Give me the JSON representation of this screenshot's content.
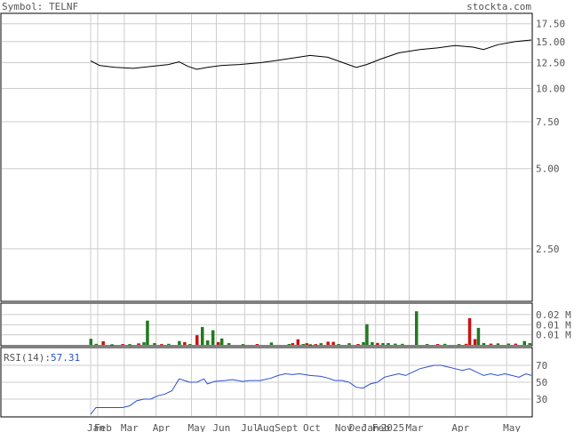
{
  "header": {
    "symbol_label": "Symbol: TELNF",
    "site": "stockta.com"
  },
  "colors": {
    "text": "#555555",
    "grid": "#cccccc",
    "frame": "#000000",
    "price": "#000000",
    "rsi": "#2a4fcf",
    "rsi_value": "#2a4fcf",
    "vol_up": "#1f7a1f",
    "vol_down": "#cc1111"
  },
  "chart_data": [
    {
      "type": "line",
      "panel": "price",
      "scale": "log",
      "ylim": [
        1.6,
        19
      ],
      "y_ticks": [
        {
          "label": "17.50",
          "v": 17.5
        },
        {
          "label": "15.00",
          "v": 15.0
        },
        {
          "label": "12.50",
          "v": 12.5
        },
        {
          "label": "10.00",
          "v": 10.0
        },
        {
          "label": "7.50",
          "v": 7.5
        },
        {
          "label": "5.00",
          "v": 5.0
        },
        {
          "label": "2.50",
          "v": 2.5
        }
      ],
      "x_months": [
        {
          "label": "Jan",
          "x": 0
        },
        {
          "label": "Feb",
          "x": 4
        },
        {
          "label": "Mar",
          "x": 19
        },
        {
          "label": "Apr",
          "x": 37
        },
        {
          "label": "May",
          "x": 57
        },
        {
          "label": "Jun",
          "x": 71
        },
        {
          "label": "Jul",
          "x": 87
        },
        {
          "label": "Aug",
          "x": 96
        },
        {
          "label": "Sept",
          "x": 106
        },
        {
          "label": "Oct",
          "x": 122
        },
        {
          "label": "Nov",
          "x": 140
        },
        {
          "label": "Dec",
          "x": 148
        },
        {
          "label": "Jan",
          "x": 155
        },
        {
          "label": "Feb",
          "x": 161
        },
        {
          "label": "2025",
          "x": 166
        },
        {
          "label": "Mar",
          "x": 180
        },
        {
          "label": "Apr",
          "x": 206
        },
        {
          "label": "May",
          "x": 235
        }
      ],
      "x_range": [
        0,
        249
      ],
      "series": [
        {
          "values": [
            [
              0,
              12.7
            ],
            [
              5,
              12.2
            ],
            [
              14,
              12.0
            ],
            [
              24,
              11.9
            ],
            [
              34,
              12.1
            ],
            [
              44,
              12.3
            ],
            [
              50,
              12.6
            ],
            [
              55,
              12.1
            ],
            [
              60,
              11.8
            ],
            [
              66,
              12.0
            ],
            [
              74,
              12.2
            ],
            [
              84,
              12.3
            ],
            [
              96,
              12.5
            ],
            [
              104,
              12.7
            ],
            [
              114,
              13.0
            ],
            [
              124,
              13.3
            ],
            [
              134,
              13.1
            ],
            [
              144,
              12.4
            ],
            [
              150,
              12.0
            ],
            [
              156,
              12.3
            ],
            [
              164,
              12.9
            ],
            [
              174,
              13.6
            ],
            [
              186,
              14.0
            ],
            [
              196,
              14.2
            ],
            [
              206,
              14.5
            ],
            [
              216,
              14.3
            ],
            [
              222,
              14.0
            ],
            [
              230,
              14.6
            ],
            [
              240,
              15.0
            ],
            [
              249,
              15.2
            ]
          ]
        }
      ]
    },
    {
      "type": "bar",
      "panel": "volume",
      "y_ticks": [
        {
          "label": "0.02 M",
          "v": 0.02
        },
        {
          "label": "0.01 M",
          "v": 0.0133
        },
        {
          "label": "0.01 M",
          "v": 0.0067
        }
      ],
      "ylim": [
        0,
        0.027
      ],
      "bars": [
        {
          "x": 0,
          "v": 0.004,
          "c": "up"
        },
        {
          "x": 3,
          "v": 0.0007,
          "c": "up"
        },
        {
          "x": 7,
          "v": 0.0024,
          "c": "down"
        },
        {
          "x": 12,
          "v": 0.0004,
          "c": "up"
        },
        {
          "x": 18,
          "v": 0.0006,
          "c": "down"
        },
        {
          "x": 22,
          "v": 0.0005,
          "c": "up"
        },
        {
          "x": 27,
          "v": 0.001,
          "c": "down"
        },
        {
          "x": 30,
          "v": 0.0017,
          "c": "up"
        },
        {
          "x": 32,
          "v": 0.016,
          "c": "up"
        },
        {
          "x": 36,
          "v": 0.0012,
          "c": "up"
        },
        {
          "x": 40,
          "v": 0.0005,
          "c": "down"
        },
        {
          "x": 44,
          "v": 0.0007,
          "c": "up"
        },
        {
          "x": 50,
          "v": 0.0025,
          "c": "up"
        },
        {
          "x": 53,
          "v": 0.0018,
          "c": "down"
        },
        {
          "x": 56,
          "v": 0.0006,
          "c": "up"
        },
        {
          "x": 60,
          "v": 0.0064,
          "c": "down"
        },
        {
          "x": 63,
          "v": 0.0118,
          "c": "up"
        },
        {
          "x": 66,
          "v": 0.003,
          "c": "up"
        },
        {
          "x": 69,
          "v": 0.0097,
          "c": "up"
        },
        {
          "x": 72,
          "v": 0.0018,
          "c": "down"
        },
        {
          "x": 74,
          "v": 0.0042,
          "c": "up"
        },
        {
          "x": 78,
          "v": 0.0012,
          "c": "up"
        },
        {
          "x": 86,
          "v": 0.0005,
          "c": "up"
        },
        {
          "x": 94,
          "v": 0.0006,
          "c": "down"
        },
        {
          "x": 102,
          "v": 0.0016,
          "c": "up"
        },
        {
          "x": 112,
          "v": 0.0006,
          "c": "up"
        },
        {
          "x": 114,
          "v": 0.0012,
          "c": "down"
        },
        {
          "x": 117,
          "v": 0.0037,
          "c": "down"
        },
        {
          "x": 120,
          "v": 0.0006,
          "c": "up"
        },
        {
          "x": 122,
          "v": 0.0011,
          "c": "down"
        },
        {
          "x": 124,
          "v": 0.0004,
          "c": "up"
        },
        {
          "x": 127,
          "v": 0.0005,
          "c": "down"
        },
        {
          "x": 130,
          "v": 0.0011,
          "c": "up"
        },
        {
          "x": 134,
          "v": 0.0021,
          "c": "down"
        },
        {
          "x": 137,
          "v": 0.002,
          "c": "down"
        },
        {
          "x": 140,
          "v": 0.0006,
          "c": "up"
        },
        {
          "x": 146,
          "v": 0.0011,
          "c": "up"
        },
        {
          "x": 151,
          "v": 0.0006,
          "c": "down"
        },
        {
          "x": 154,
          "v": 0.0018,
          "c": "up"
        },
        {
          "x": 156,
          "v": 0.0137,
          "c": "up"
        },
        {
          "x": 159,
          "v": 0.0018,
          "c": "up"
        },
        {
          "x": 162,
          "v": 0.0013,
          "c": "down"
        },
        {
          "x": 165,
          "v": 0.0012,
          "c": "up"
        },
        {
          "x": 168,
          "v": 0.0012,
          "c": "up"
        },
        {
          "x": 172,
          "v": 0.0008,
          "c": "up"
        },
        {
          "x": 176,
          "v": 0.0007,
          "c": "up"
        },
        {
          "x": 184,
          "v": 0.0222,
          "c": "up"
        },
        {
          "x": 190,
          "v": 0.0006,
          "c": "up"
        },
        {
          "x": 196,
          "v": 0.0006,
          "c": "down"
        },
        {
          "x": 200,
          "v": 0.0007,
          "c": "up"
        },
        {
          "x": 208,
          "v": 0.0005,
          "c": "up"
        },
        {
          "x": 212,
          "v": 0.0007,
          "c": "down"
        },
        {
          "x": 214,
          "v": 0.0176,
          "c": "down"
        },
        {
          "x": 217,
          "v": 0.0038,
          "c": "down"
        },
        {
          "x": 219,
          "v": 0.0112,
          "c": "up"
        },
        {
          "x": 222,
          "v": 0.0012,
          "c": "up"
        },
        {
          "x": 226,
          "v": 0.0008,
          "c": "down"
        },
        {
          "x": 230,
          "v": 0.001,
          "c": "up"
        },
        {
          "x": 236,
          "v": 0.0009,
          "c": "up"
        },
        {
          "x": 240,
          "v": 0.0008,
          "c": "down"
        },
        {
          "x": 245,
          "v": 0.0025,
          "c": "up"
        },
        {
          "x": 248,
          "v": 0.0012,
          "c": "up"
        }
      ]
    },
    {
      "type": "line",
      "panel": "rsi",
      "label": "RSI(14):",
      "value": "57.31",
      "ylim": [
        10,
        90
      ],
      "y_ticks": [
        {
          "label": "70",
          "v": 70
        },
        {
          "label": "50",
          "v": 50
        },
        {
          "label": "30",
          "v": 30
        }
      ],
      "series": [
        {
          "values": [
            [
              0,
              12
            ],
            [
              3,
              20
            ],
            [
              8,
              20
            ],
            [
              14,
              20
            ],
            [
              18,
              20
            ],
            [
              22,
              22
            ],
            [
              26,
              28
            ],
            [
              30,
              30
            ],
            [
              34,
              30
            ],
            [
              38,
              34
            ],
            [
              42,
              36
            ],
            [
              46,
              40
            ],
            [
              50,
              54
            ],
            [
              53,
              52
            ],
            [
              56,
              50
            ],
            [
              60,
              50
            ],
            [
              64,
              54
            ],
            [
              66,
              48
            ],
            [
              70,
              51
            ],
            [
              76,
              52
            ],
            [
              80,
              53
            ],
            [
              86,
              51
            ],
            [
              90,
              52
            ],
            [
              96,
              52
            ],
            [
              102,
              55
            ],
            [
              106,
              58
            ],
            [
              110,
              60
            ],
            [
              114,
              59
            ],
            [
              118,
              60
            ],
            [
              124,
              58
            ],
            [
              130,
              57
            ],
            [
              134,
              55
            ],
            [
              138,
              52
            ],
            [
              142,
              52
            ],
            [
              146,
              50
            ],
            [
              150,
              44
            ],
            [
              154,
              43
            ],
            [
              158,
              48
            ],
            [
              162,
              50
            ],
            [
              166,
              56
            ],
            [
              170,
              58
            ],
            [
              174,
              60
            ],
            [
              178,
              58
            ],
            [
              182,
              62
            ],
            [
              186,
              66
            ],
            [
              190,
              68
            ],
            [
              194,
              70
            ],
            [
              198,
              70
            ],
            [
              202,
              68
            ],
            [
              206,
              66
            ],
            [
              210,
              64
            ],
            [
              214,
              66
            ],
            [
              218,
              62
            ],
            [
              222,
              58
            ],
            [
              226,
              60
            ],
            [
              230,
              58
            ],
            [
              234,
              60
            ],
            [
              238,
              58
            ],
            [
              242,
              56
            ],
            [
              246,
              60
            ],
            [
              249,
              58
            ]
          ]
        }
      ]
    }
  ]
}
